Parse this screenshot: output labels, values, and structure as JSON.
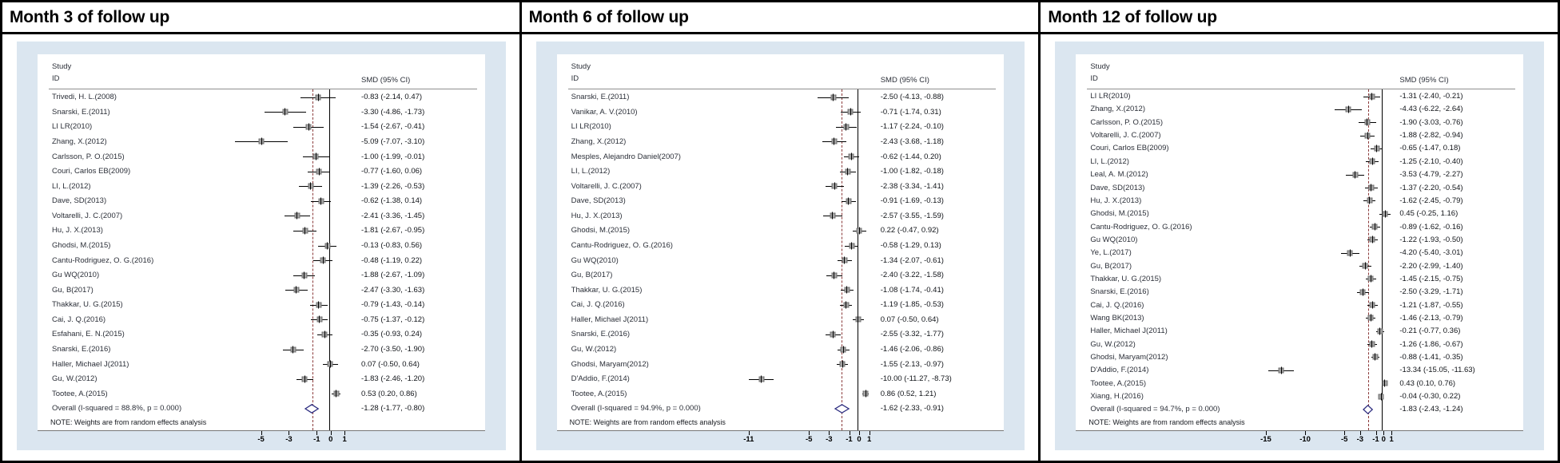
{
  "colors": {
    "card_bg": "#dbe6f0",
    "zero_line": "#000000",
    "overall_dashed_line": "#8b3a3a",
    "diamond_stroke": "#2d2d80",
    "marker_fill": "#a3a3a3",
    "border": "#000000"
  },
  "chart_data": [
    {
      "type": "forest",
      "title": "Month 3 of follow up",
      "col_headers": {
        "study_line1": "Study",
        "study_line2": "ID",
        "smd": "SMD (95% CI)"
      },
      "note": "NOTE: Weights are from random effects analysis",
      "axis": {
        "min": -8.2,
        "max": 2.4,
        "ticks": [
          -5,
          -3,
          -1,
          0,
          1
        ]
      },
      "overall": {
        "label": "Overall  (I-squared = 88.8%, p = 0.000)",
        "est": -1.28,
        "lo": -1.77,
        "hi": -0.8,
        "text": "-1.28 (-1.77, -0.80)"
      },
      "studies": [
        {
          "label": "Trivedi, H. L.(2008)",
          "est": -0.83,
          "lo": -2.14,
          "hi": 0.47,
          "text": "-0.83 (-2.14, 0.47)"
        },
        {
          "label": "Snarski, E.(2011)",
          "est": -3.3,
          "lo": -4.86,
          "hi": -1.73,
          "text": "-3.30 (-4.86, -1.73)"
        },
        {
          "label": "LI LR(2010)",
          "est": -1.54,
          "lo": -2.67,
          "hi": -0.41,
          "text": "-1.54 (-2.67, -0.41)"
        },
        {
          "label": "Zhang, X.(2012)",
          "est": -5.09,
          "lo": -7.07,
          "hi": -3.1,
          "text": "-5.09 (-7.07, -3.10)"
        },
        {
          "label": "Carlsson, P. O.(2015)",
          "est": -1.0,
          "lo": -1.99,
          "hi": -0.01,
          "text": "-1.00 (-1.99, -0.01)"
        },
        {
          "label": "Couri, Carlos EB(2009)",
          "est": -0.77,
          "lo": -1.6,
          "hi": 0.06,
          "text": "-0.77 (-1.60, 0.06)"
        },
        {
          "label": "LI, L.(2012)",
          "est": -1.39,
          "lo": -2.26,
          "hi": -0.53,
          "text": "-1.39 (-2.26, -0.53)"
        },
        {
          "label": "Dave, SD(2013)",
          "est": -0.62,
          "lo": -1.38,
          "hi": 0.14,
          "text": "-0.62 (-1.38, 0.14)"
        },
        {
          "label": "Voltarelli, J. C.(2007)",
          "est": -2.41,
          "lo": -3.36,
          "hi": -1.45,
          "text": "-2.41 (-3.36, -1.45)"
        },
        {
          "label": "Hu, J. X.(2013)",
          "est": -1.81,
          "lo": -2.67,
          "hi": -0.95,
          "text": "-1.81 (-2.67, -0.95)"
        },
        {
          "label": "Ghodsi, M.(2015)",
          "est": -0.13,
          "lo": -0.83,
          "hi": 0.56,
          "text": "-0.13 (-0.83, 0.56)"
        },
        {
          "label": "Cantu-Rodriguez, O. G.(2016)",
          "est": -0.48,
          "lo": -1.19,
          "hi": 0.22,
          "text": "-0.48 (-1.19, 0.22)"
        },
        {
          "label": "Gu WQ(2010)",
          "est": -1.88,
          "lo": -2.67,
          "hi": -1.09,
          "text": "-1.88 (-2.67, -1.09)"
        },
        {
          "label": "Gu, B(2017)",
          "est": -2.47,
          "lo": -3.3,
          "hi": -1.63,
          "text": "-2.47 (-3.30, -1.63)"
        },
        {
          "label": "Thakkar, U. G.(2015)",
          "est": -0.79,
          "lo": -1.43,
          "hi": -0.14,
          "text": "-0.79 (-1.43, -0.14)"
        },
        {
          "label": "Cai, J. Q.(2016)",
          "est": -0.75,
          "lo": -1.37,
          "hi": -0.12,
          "text": "-0.75 (-1.37, -0.12)"
        },
        {
          "label": "Esfahani, E. N.(2015)",
          "est": -0.35,
          "lo": -0.93,
          "hi": 0.24,
          "text": "-0.35 (-0.93, 0.24)"
        },
        {
          "label": "Snarski, E.(2016)",
          "est": -2.7,
          "lo": -3.5,
          "hi": -1.9,
          "text": "-2.70 (-3.50, -1.90)"
        },
        {
          "label": "Haller, Michael J(2011)",
          "est": 0.07,
          "lo": -0.5,
          "hi": 0.64,
          "text": "0.07 (-0.50, 0.64)"
        },
        {
          "label": "Gu, W.(2012)",
          "est": -1.83,
          "lo": -2.46,
          "hi": -1.2,
          "text": "-1.83 (-2.46, -1.20)"
        },
        {
          "label": "Tootee, A.(2015)",
          "est": 0.53,
          "lo": 0.2,
          "hi": 0.86,
          "text": "0.53 (0.20, 0.86)"
        }
      ]
    },
    {
      "type": "forest",
      "title": "Month 6 of follow up",
      "col_headers": {
        "study_line1": "Study",
        "study_line2": "ID",
        "smd": "SMD (95% CI)"
      },
      "note": "NOTE: Weights are from random effects analysis",
      "axis": {
        "min": -12.3,
        "max": 2.4,
        "ticks": [
          -11,
          -5,
          -3,
          -1,
          0,
          1
        ]
      },
      "overall": {
        "label": "Overall  (I-squared = 94.9%, p = 0.000)",
        "est": -1.62,
        "lo": -2.33,
        "hi": -0.91,
        "text": "-1.62 (-2.33, -0.91)"
      },
      "studies": [
        {
          "label": "Snarski, E.(2011)",
          "est": -2.5,
          "lo": -4.13,
          "hi": -0.88,
          "text": "-2.50 (-4.13, -0.88)"
        },
        {
          "label": "Vanikar, A. V.(2010)",
          "est": -0.71,
          "lo": -1.74,
          "hi": 0.31,
          "text": "-0.71 (-1.74, 0.31)"
        },
        {
          "label": "LI LR(2010)",
          "est": -1.17,
          "lo": -2.24,
          "hi": -0.1,
          "text": "-1.17 (-2.24, -0.10)"
        },
        {
          "label": "Zhang, X.(2012)",
          "est": -2.43,
          "lo": -3.68,
          "hi": -1.18,
          "text": "-2.43 (-3.68, -1.18)"
        },
        {
          "label": "Mesples, Alejandro Daniel(2007)",
          "est": -0.62,
          "lo": -1.44,
          "hi": 0.2,
          "text": "-0.62 (-1.44, 0.20)"
        },
        {
          "label": "LI, L.(2012)",
          "est": -1.0,
          "lo": -1.82,
          "hi": -0.18,
          "text": "-1.00 (-1.82, -0.18)"
        },
        {
          "label": "Voltarelli, J. C.(2007)",
          "est": -2.38,
          "lo": -3.34,
          "hi": -1.41,
          "text": "-2.38 (-3.34, -1.41)"
        },
        {
          "label": "Dave, SD(2013)",
          "est": -0.91,
          "lo": -1.69,
          "hi": -0.13,
          "text": "-0.91 (-1.69, -0.13)"
        },
        {
          "label": "Hu, J. X.(2013)",
          "est": -2.57,
          "lo": -3.55,
          "hi": -1.59,
          "text": "-2.57 (-3.55, -1.59)"
        },
        {
          "label": "Ghodsi, M.(2015)",
          "est": 0.22,
          "lo": -0.47,
          "hi": 0.92,
          "text": "0.22 (-0.47, 0.92)"
        },
        {
          "label": "Cantu-Rodriguez, O. G.(2016)",
          "est": -0.58,
          "lo": -1.29,
          "hi": 0.13,
          "text": "-0.58 (-1.29, 0.13)"
        },
        {
          "label": "Gu WQ(2010)",
          "est": -1.34,
          "lo": -2.07,
          "hi": -0.61,
          "text": "-1.34 (-2.07, -0.61)"
        },
        {
          "label": "Gu, B(2017)",
          "est": -2.4,
          "lo": -3.22,
          "hi": -1.58,
          "text": "-2.40 (-3.22, -1.58)"
        },
        {
          "label": "Thakkar, U. G.(2015)",
          "est": -1.08,
          "lo": -1.74,
          "hi": -0.41,
          "text": "-1.08 (-1.74, -0.41)"
        },
        {
          "label": "Cai, J. Q.(2016)",
          "est": -1.19,
          "lo": -1.85,
          "hi": -0.53,
          "text": "-1.19 (-1.85, -0.53)"
        },
        {
          "label": "Haller, Michael J(2011)",
          "est": 0.07,
          "lo": -0.5,
          "hi": 0.64,
          "text": "0.07 (-0.50, 0.64)"
        },
        {
          "label": "Snarski, E.(2016)",
          "est": -2.55,
          "lo": -3.32,
          "hi": -1.77,
          "text": "-2.55 (-3.32, -1.77)"
        },
        {
          "label": "Gu, W.(2012)",
          "est": -1.46,
          "lo": -2.06,
          "hi": -0.86,
          "text": "-1.46 (-2.06, -0.86)"
        },
        {
          "label": "Ghodsi, Maryam(2012)",
          "est": -1.55,
          "lo": -2.13,
          "hi": -0.97,
          "text": "-1.55 (-2.13, -0.97)"
        },
        {
          "label": "D'Addio, F.(2014)",
          "est": -10.0,
          "lo": -11.27,
          "hi": -8.73,
          "text": "-10.00 (-11.27, -8.73)"
        },
        {
          "label": "Tootee, A.(2015)",
          "est": 0.86,
          "lo": 0.52,
          "hi": 1.21,
          "text": "0.86 (0.52, 1.21)"
        }
      ]
    },
    {
      "type": "forest",
      "title": "Month 12 of follow up",
      "col_headers": {
        "study_line1": "Study",
        "study_line2": "ID",
        "smd": "SMD (95% CI)"
      },
      "note": "NOTE: Weights are from random effects analysis",
      "axis": {
        "min": -16.4,
        "max": 2.4,
        "ticks": [
          -15,
          -10,
          -5,
          -3,
          -1,
          0,
          1
        ]
      },
      "overall": {
        "label": "Overall  (I-squared = 94.7%, p = 0.000)",
        "est": -1.83,
        "lo": -2.43,
        "hi": -1.24,
        "text": "-1.83 (-2.43, -1.24)"
      },
      "studies": [
        {
          "label": "LI LR(2010)",
          "est": -1.31,
          "lo": -2.4,
          "hi": -0.21,
          "text": "-1.31 (-2.40, -0.21)"
        },
        {
          "label": "Zhang, X.(2012)",
          "est": -4.43,
          "lo": -6.22,
          "hi": -2.64,
          "text": "-4.43 (-6.22, -2.64)"
        },
        {
          "label": "Carlsson, P. O.(2015)",
          "est": -1.9,
          "lo": -3.03,
          "hi": -0.76,
          "text": "-1.90 (-3.03, -0.76)"
        },
        {
          "label": "Voltarelli, J. C.(2007)",
          "est": -1.88,
          "lo": -2.82,
          "hi": -0.94,
          "text": "-1.88 (-2.82, -0.94)"
        },
        {
          "label": "Couri, Carlos EB(2009)",
          "est": -0.65,
          "lo": -1.47,
          "hi": 0.18,
          "text": "-0.65 (-1.47, 0.18)"
        },
        {
          "label": "LI, L.(2012)",
          "est": -1.25,
          "lo": -2.1,
          "hi": -0.4,
          "text": "-1.25 (-2.10, -0.40)"
        },
        {
          "label": "Leal, A. M.(2012)",
          "est": -3.53,
          "lo": -4.79,
          "hi": -2.27,
          "text": "-3.53 (-4.79, -2.27)"
        },
        {
          "label": "Dave, SD(2013)",
          "est": -1.37,
          "lo": -2.2,
          "hi": -0.54,
          "text": "-1.37 (-2.20, -0.54)"
        },
        {
          "label": "Hu, J. X.(2013)",
          "est": -1.62,
          "lo": -2.45,
          "hi": -0.79,
          "text": "-1.62 (-2.45, -0.79)"
        },
        {
          "label": "Ghodsi, M.(2015)",
          "est": 0.45,
          "lo": -0.25,
          "hi": 1.16,
          "text": "0.45 (-0.25, 1.16)"
        },
        {
          "label": "Cantu-Rodriguez, O. G.(2016)",
          "est": -0.89,
          "lo": -1.62,
          "hi": -0.16,
          "text": "-0.89 (-1.62, -0.16)"
        },
        {
          "label": "Gu WQ(2010)",
          "est": -1.22,
          "lo": -1.93,
          "hi": -0.5,
          "text": "-1.22 (-1.93, -0.50)"
        },
        {
          "label": "Ye, L.(2017)",
          "est": -4.2,
          "lo": -5.4,
          "hi": -3.01,
          "text": "-4.20 (-5.40, -3.01)"
        },
        {
          "label": "Gu, B(2017)",
          "est": -2.2,
          "lo": -2.99,
          "hi": -1.4,
          "text": "-2.20 (-2.99, -1.40)"
        },
        {
          "label": "Thakkar, U. G.(2015)",
          "est": -1.45,
          "lo": -2.15,
          "hi": -0.75,
          "text": "-1.45 (-2.15, -0.75)"
        },
        {
          "label": "Snarski, E.(2016)",
          "est": -2.5,
          "lo": -3.29,
          "hi": -1.71,
          "text": "-2.50 (-3.29, -1.71)"
        },
        {
          "label": "Cai, J. Q.(2016)",
          "est": -1.21,
          "lo": -1.87,
          "hi": -0.55,
          "text": "-1.21 (-1.87, -0.55)"
        },
        {
          "label": "Wang BK(2013)",
          "est": -1.46,
          "lo": -2.13,
          "hi": -0.79,
          "text": "-1.46 (-2.13, -0.79)"
        },
        {
          "label": "Haller, Michael J(2011)",
          "est": -0.21,
          "lo": -0.77,
          "hi": 0.36,
          "text": "-0.21 (-0.77, 0.36)"
        },
        {
          "label": "Gu, W.(2012)",
          "est": -1.26,
          "lo": -1.86,
          "hi": -0.67,
          "text": "-1.26 (-1.86, -0.67)"
        },
        {
          "label": "Ghodsi, Maryam(2012)",
          "est": -0.88,
          "lo": -1.41,
          "hi": -0.35,
          "text": "-0.88 (-1.41, -0.35)"
        },
        {
          "label": "D'Addio, F.(2014)",
          "est": -13.34,
          "lo": -15.05,
          "hi": -11.63,
          "text": "-13.34 (-15.05, -11.63)"
        },
        {
          "label": "Tootee, A.(2015)",
          "est": 0.43,
          "lo": 0.1,
          "hi": 0.76,
          "text": "0.43 (0.10, 0.76)"
        },
        {
          "label": "Xiang, H.(2016)",
          "est": -0.04,
          "lo": -0.3,
          "hi": 0.22,
          "text": "-0.04 (-0.30, 0.22)"
        }
      ]
    }
  ]
}
